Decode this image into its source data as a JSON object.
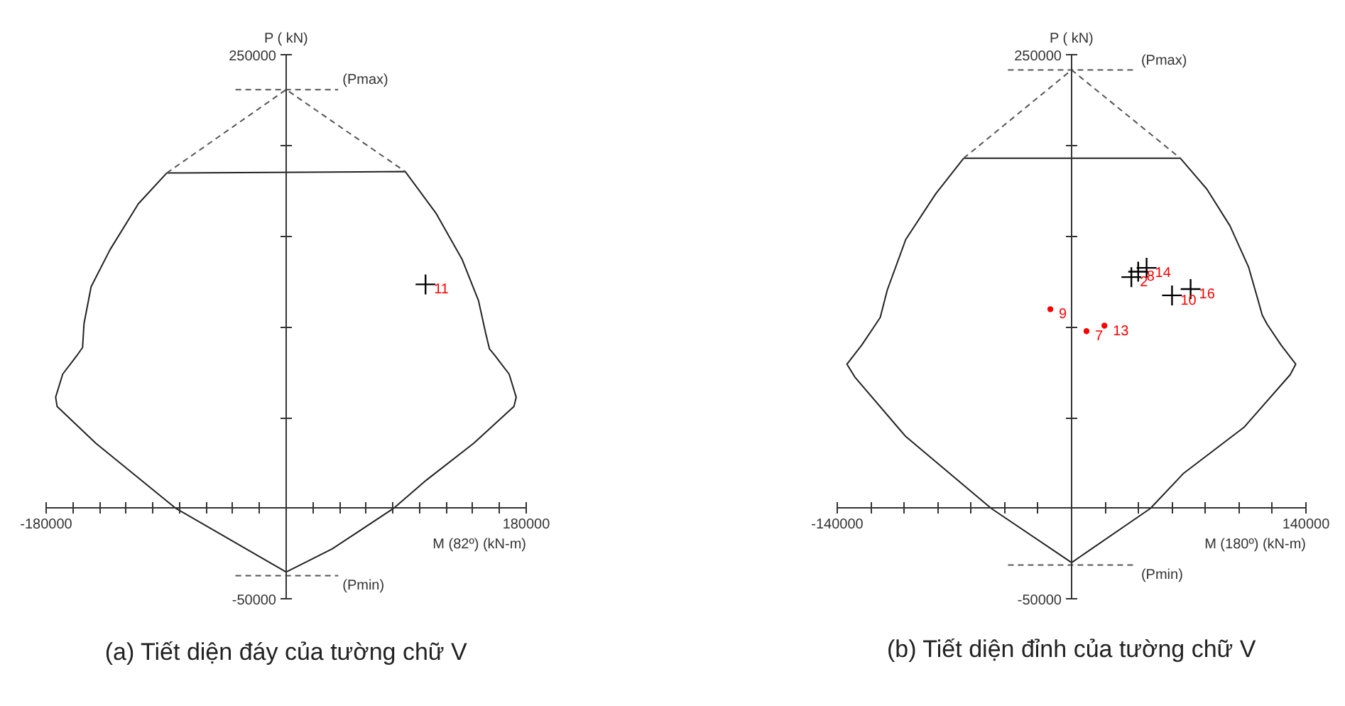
{
  "chart_data": [
    {
      "type": "line",
      "title": "(a) Tiết diện đáy của tường chữ V",
      "xlabel": "M (82º) (kN-m)",
      "ylabel": "P ( kN)",
      "xlim": [
        -180000,
        180000
      ],
      "ylim": [
        -50000,
        250000
      ],
      "xticks": [
        -180000,
        {
          "value": -160000,
          "label": null
        },
        {
          "value": -140000,
          "label": null
        },
        {
          "value": -120000,
          "label": null
        },
        {
          "value": -100000,
          "label": null
        },
        {
          "value": -80000,
          "label": null
        },
        {
          "value": -60000,
          "label": null
        },
        {
          "value": -40000,
          "label": null
        },
        {
          "value": -20000,
          "label": null
        },
        {
          "value": 20000,
          "label": null
        },
        {
          "value": 40000,
          "label": null
        },
        {
          "value": 60000,
          "label": null
        },
        {
          "value": 80000,
          "label": null
        },
        {
          "value": 100000,
          "label": null
        },
        {
          "value": 120000,
          "label": null
        },
        {
          "value": 140000,
          "label": null
        },
        {
          "value": 160000,
          "label": null
        },
        180000
      ],
      "yticks": [
        -50000,
        {
          "value": 0,
          "label": null
        },
        {
          "value": 50000,
          "label": null
        },
        {
          "value": 100000,
          "label": null
        },
        {
          "value": 150000,
          "label": null
        },
        {
          "value": 200000,
          "label": null
        },
        250000
      ],
      "annotations": [
        {
          "text": "(Pmax)",
          "x": 39000,
          "y": 231000
        },
        {
          "text": "(Pmin)",
          "x": 39000,
          "y": -37000
        },
        {
          "text": "11",
          "x": 104500,
          "y": 123600
        }
      ],
      "series": [
        {
          "color": "#222222",
          "line_style": "solid",
          "x": [
            -89600,
            89300,
            112300,
            131800,
            144200,
            149500,
            152400,
            156600,
            167200,
            172500,
            170800,
            140700,
            105200,
            80400,
            34400,
            0
          ],
          "values": [
            185000,
            185800,
            162900,
            137600,
            114700,
            97000,
            88100,
            84300,
            74100,
            61400,
            56300,
            36000,
            15700,
            0,
            -22300,
            -35000
          ]
        },
        {
          "color": "#222222",
          "line_style": "solid",
          "x": [
            0,
            -82600,
            -142800,
            -171800,
            -172900,
            -167600,
            -157000,
            -152700,
            -151600,
            -146300,
            -132200,
            -110900,
            -89600
          ],
          "values": [
            -35000,
            0,
            36000,
            56300,
            61400,
            74100,
            84300,
            88800,
            102000,
            122300,
            142600,
            168000,
            185000
          ]
        },
        {
          "color": "#555555",
          "line_style": "dashed",
          "x": [
            -89600,
            0,
            89300
          ],
          "values": [
            185000,
            231000,
            185800
          ]
        },
        {
          "color": "#555555",
          "line_style": "dashed",
          "x": [
            -38000,
            39000
          ],
          "values": [
            231000,
            231000
          ]
        },
        {
          "color": "#555555",
          "line_style": "dashed",
          "x": [
            -38000,
            39000
          ],
          "values": [
            -37000,
            -37000
          ]
        },
        {
          "type": "scatter",
          "color": "#000000",
          "marker": "cross",
          "x": [
            104500
          ],
          "values": [
            123600
          ]
        }
      ]
    },
    {
      "type": "line",
      "title": "(b) Tiết diện đỉnh của tường chữ V",
      "xlabel": "M (180º) (kN-m)",
      "ylabel": "P ( kN)",
      "xlim": [
        -140000,
        140000
      ],
      "ylim": [
        -50000,
        250000
      ],
      "xticks": [
        -140000,
        {
          "value": -120000,
          "label": null
        },
        {
          "value": -100000,
          "label": null
        },
        {
          "value": -80000,
          "label": null
        },
        {
          "value": -60000,
          "label": null
        },
        {
          "value": -40000,
          "label": null
        },
        {
          "value": -20000,
          "label": null
        },
        {
          "value": 20000,
          "label": null
        },
        {
          "value": 40000,
          "label": null
        },
        {
          "value": 60000,
          "label": null
        },
        {
          "value": 80000,
          "label": null
        },
        {
          "value": 100000,
          "label": null
        },
        {
          "value": 120000,
          "label": null
        },
        140000
      ],
      "yticks": [
        -50000,
        {
          "value": 0,
          "label": null
        },
        {
          "value": 50000,
          "label": null
        },
        {
          "value": 100000,
          "label": null
        },
        {
          "value": 150000,
          "label": null
        },
        {
          "value": 200000,
          "label": null
        },
        250000
      ],
      "annotations": [
        {
          "text": "(Pmax)",
          "x": 39000,
          "y": 241800
        },
        {
          "text": "(Pmin)",
          "x": 39000,
          "y": -31100
        },
        {
          "text": "2",
          "x": 35700,
          "y": 127600
        },
        {
          "text": "8",
          "x": 39800,
          "y": 130600
        },
        {
          "text": "14",
          "x": 44800,
          "y": 132700
        },
        {
          "text": "10",
          "x": 60000,
          "y": 117500
        },
        {
          "text": "16",
          "x": 71100,
          "y": 121000
        },
        {
          "text": "9",
          "x": -12700,
          "y": 109900
        },
        {
          "text": "7",
          "x": 8900,
          "y": 97800
        },
        {
          "text": "13",
          "x": 19600,
          "y": 100800
        }
      ],
      "series": [
        {
          "color": "#222222",
          "line_style": "solid",
          "x": [
            -64500,
            65000,
            80800,
            94600,
            105700,
            111200,
            113900,
            116800,
            125100,
            133900,
            130600,
            102900,
            67000,
            47000,
            0
          ],
          "values": [
            193100,
            193100,
            176100,
            155900,
            133200,
            115500,
            106600,
            101600,
            90200,
            79600,
            73800,
            44700,
            19500,
            0,
            -29800
          ]
        },
        {
          "color": "#222222",
          "line_style": "solid",
          "x": [
            0,
            -47900,
            -99100,
            -129500,
            -134200,
            -125300,
            -117000,
            -114300,
            -110100,
            -99100,
            -81100,
            -64500
          ],
          "values": [
            -29800,
            0,
            39700,
            72500,
            79600,
            90200,
            101600,
            105400,
            120500,
            148300,
            173600,
            193100
          ]
        },
        {
          "color": "#555555",
          "line_style": "dashed",
          "x": [
            -64500,
            0,
            65000
          ],
          "values": [
            193100,
            241800,
            193100
          ]
        },
        {
          "color": "#555555",
          "line_style": "dashed",
          "x": [
            -38000,
            39000
          ],
          "values": [
            241800,
            241800
          ]
        },
        {
          "color": "#555555",
          "line_style": "dashed",
          "x": [
            -38000,
            39000
          ],
          "values": [
            -31100,
            -31100
          ]
        },
        {
          "type": "scatter",
          "color": "#000000",
          "marker": "cross",
          "x": [
            35700,
            39800,
            44800,
            60000,
            71100
          ],
          "values": [
            127600,
            130600,
            132700,
            117500,
            121000
          ]
        },
        {
          "type": "scatter",
          "color": "#ff0000",
          "marker": "circle",
          "x": [
            -12700,
            8900,
            19600
          ],
          "values": [
            109900,
            97800,
            100800
          ]
        }
      ]
    }
  ]
}
